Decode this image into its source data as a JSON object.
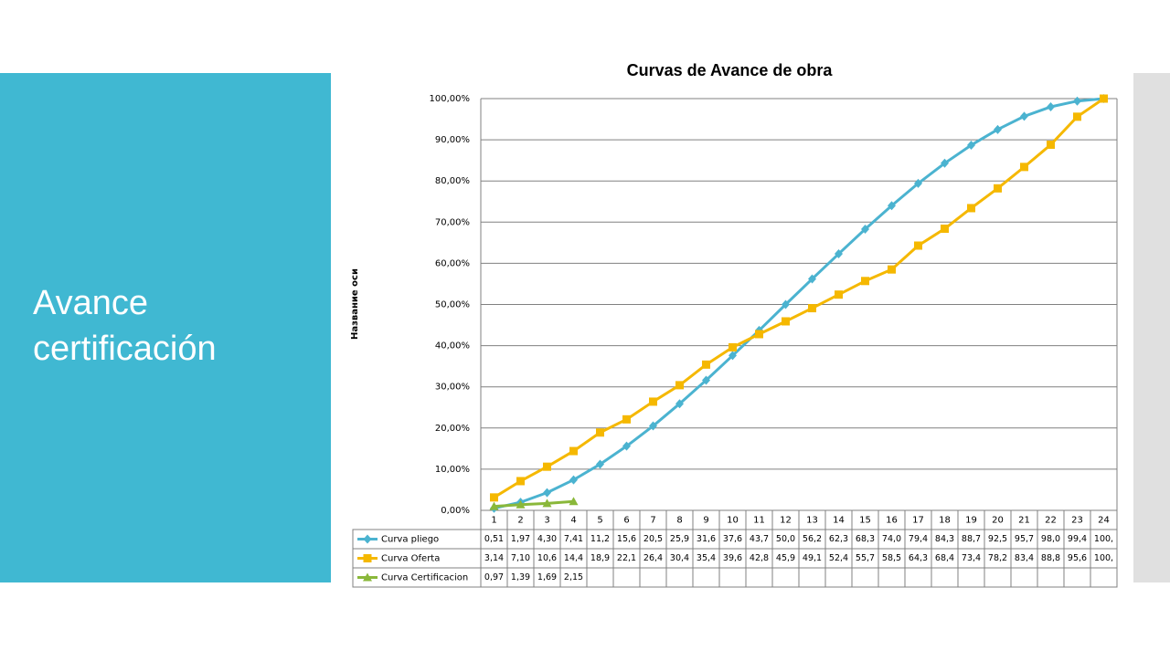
{
  "slide": {
    "title": "Avance certificación"
  },
  "chart_data": {
    "type": "line",
    "title": "Curvas de Avance de obra",
    "y_label": "Название оси",
    "categories": [
      "1",
      "2",
      "3",
      "4",
      "5",
      "6",
      "7",
      "8",
      "9",
      "10",
      "11",
      "12",
      "13",
      "14",
      "15",
      "16",
      "17",
      "18",
      "19",
      "20",
      "21",
      "22",
      "23",
      "24"
    ],
    "ylim": [
      0,
      100
    ],
    "yticks": [
      {
        "value": 0,
        "label": "0,00%"
      },
      {
        "value": 10,
        "label": "10,00%"
      },
      {
        "value": 20,
        "label": "20,00%"
      },
      {
        "value": 30,
        "label": "30,00%"
      },
      {
        "value": 40,
        "label": "40,00%"
      },
      {
        "value": 50,
        "label": "50,00%"
      },
      {
        "value": 60,
        "label": "60,00%"
      },
      {
        "value": 70,
        "label": "70,00%"
      },
      {
        "value": 80,
        "label": "80,00%"
      },
      {
        "value": 90,
        "label": "90,00%"
      },
      {
        "value": 100,
        "label": "100,00%"
      }
    ],
    "grid": true,
    "series": [
      {
        "name": "Curva pliego",
        "color": "#4bb3d0",
        "marker": "diamond",
        "values": [
          0.51,
          1.97,
          4.3,
          7.41,
          11.2,
          15.6,
          20.5,
          25.9,
          31.6,
          37.6,
          43.7,
          50.0,
          56.2,
          62.3,
          68.3,
          74.0,
          79.4,
          84.3,
          88.7,
          92.5,
          95.7,
          98.0,
          99.4,
          100
        ],
        "value_labels": [
          "0,51",
          "1,97",
          "4,30",
          "7,41",
          "11,2",
          "15,6",
          "20,5",
          "25,9",
          "31,6",
          "37,6",
          "43,7",
          "50,0",
          "56,2",
          "62,3",
          "68,3",
          "74,0",
          "79,4",
          "84,3",
          "88,7",
          "92,5",
          "95,7",
          "98,0",
          "99,4",
          "100,"
        ]
      },
      {
        "name": "Curva Oferta",
        "color": "#f5b800",
        "marker": "square",
        "values": [
          3.14,
          7.1,
          10.6,
          14.4,
          18.9,
          22.1,
          26.4,
          30.4,
          35.4,
          39.6,
          42.8,
          45.9,
          49.1,
          52.4,
          55.7,
          58.5,
          64.3,
          68.4,
          73.4,
          78.2,
          83.4,
          88.8,
          95.6,
          100
        ],
        "value_labels": [
          "3,14",
          "7,10",
          "10,6",
          "14,4",
          "18,9",
          "22,1",
          "26,4",
          "30,4",
          "35,4",
          "39,6",
          "42,8",
          "45,9",
          "49,1",
          "52,4",
          "55,7",
          "58,5",
          "64,3",
          "68,4",
          "73,4",
          "78,2",
          "83,4",
          "88,8",
          "95,6",
          "100,"
        ]
      },
      {
        "name": "Curva Certificacion",
        "color": "#8ab83a",
        "marker": "triangle",
        "values": [
          0.97,
          1.39,
          1.69,
          2.15,
          null,
          null,
          null,
          null,
          null,
          null,
          null,
          null,
          null,
          null,
          null,
          null,
          null,
          null,
          null,
          null,
          null,
          null,
          null,
          null
        ],
        "value_labels": [
          "0,97",
          "1,39",
          "1,69",
          "2,15",
          null,
          null,
          null,
          null,
          null,
          null,
          null,
          null,
          null,
          null,
          null,
          null,
          null,
          null,
          null,
          null,
          null,
          null,
          null,
          null
        ]
      }
    ]
  }
}
